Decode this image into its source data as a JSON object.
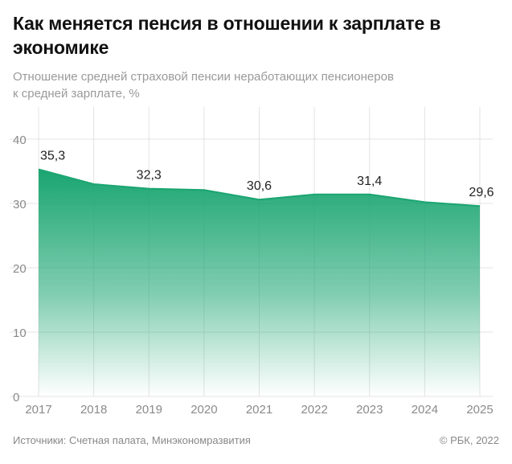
{
  "title": "Как меняется пенсия в отношении к зарплате в экономике",
  "subtitle_lines": [
    "Отношение средней страховой пенсии неработающих пенсионеров",
    "к средней зарплате, %"
  ],
  "footer": {
    "source": "Источники: Счетная палата, Минэкономразвития",
    "copyright": "© РБК, 2022"
  },
  "colors": {
    "accent": "#1aa571",
    "grid": "#e3e3e3",
    "axis_text": "#8a8a8a",
    "label_text": "#222222"
  },
  "chart_data": {
    "type": "area",
    "title": "Как меняется пенсия в отношении к зарплате в экономике",
    "ylabel": "",
    "xlabel": "",
    "x": [
      "2017",
      "2018",
      "2019",
      "2020",
      "2021",
      "2022",
      "2023",
      "2024",
      "2025"
    ],
    "values": [
      35.3,
      33.0,
      32.3,
      32.1,
      30.6,
      31.4,
      31.4,
      30.2,
      29.6
    ],
    "data_labels": [
      {
        "year": "2017",
        "text": "35,3"
      },
      {
        "year": "2019",
        "text": "32,3"
      },
      {
        "year": "2021",
        "text": "30,6"
      },
      {
        "year": "2023",
        "text": "31,4"
      },
      {
        "year": "2025",
        "text": "29,6"
      }
    ],
    "y_ticks": [
      "0",
      "10",
      "20",
      "30",
      "40"
    ],
    "ylim": [
      0,
      40
    ],
    "grid": true
  }
}
